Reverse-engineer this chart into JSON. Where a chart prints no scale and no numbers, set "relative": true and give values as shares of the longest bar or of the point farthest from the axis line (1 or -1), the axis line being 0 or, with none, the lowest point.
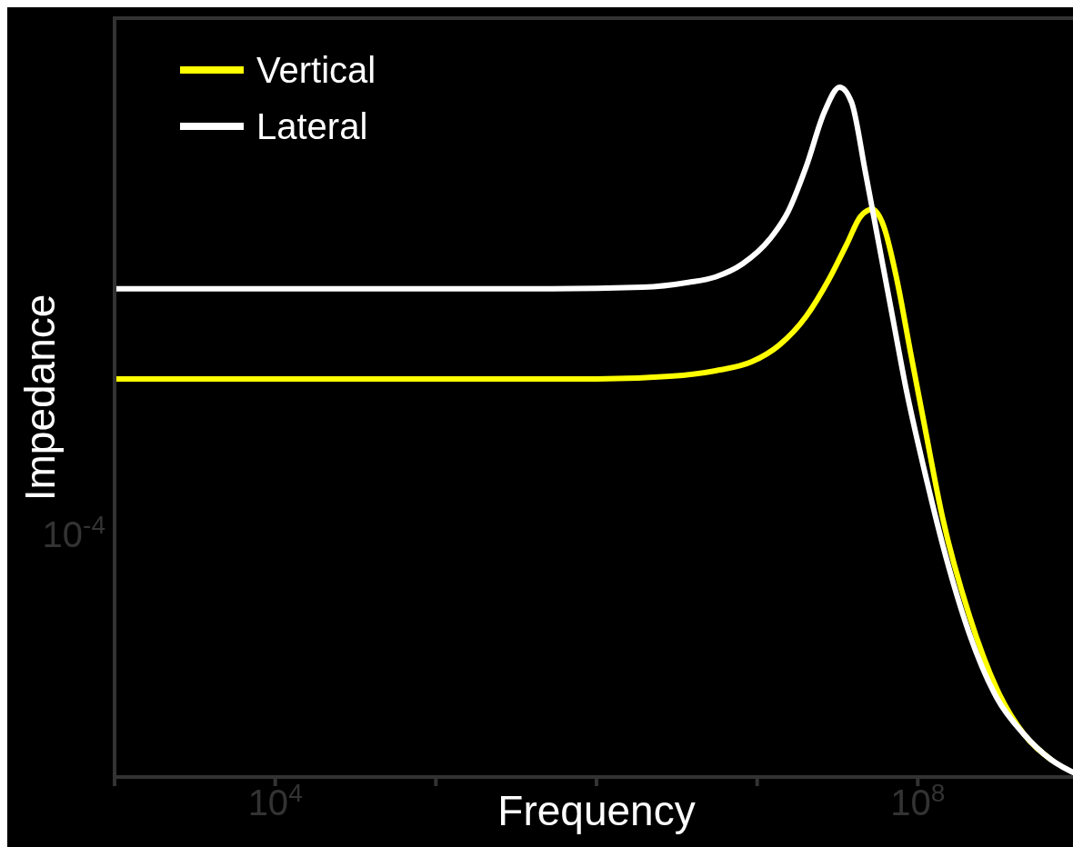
{
  "chart_data": {
    "type": "line",
    "relative": true,
    "xlabel": "Frequency",
    "ylabel": "Impedance",
    "annotations": [
      "10$^{-4}$"
    ],
    "log": "x",
    "xlim": [
      1000,
      1000000000
    ],
    "xticks": [
      {
        "value": 1000,
        "label": null
      },
      {
        "value": 10000,
        "label": "10$^{4}$"
      },
      {
        "value": 100000,
        "label": null
      },
      {
        "value": 1000000,
        "label": null
      },
      {
        "value": 10000000,
        "label": null
      },
      {
        "value": 100000000,
        "label": "10$^{8}$"
      },
      {
        "value": 1000000000,
        "label": null
      }
    ],
    "legend": "top left",
    "marker": "none",
    "line_style": "solid",
    "series": [
      {
        "name": "Vertical",
        "color": "#ffff00",
        "x": [
          1000,
          1000000,
          2870000,
          5500000,
          9250000,
          13700000,
          20200000,
          27900000,
          36200000,
          44100000,
          52200000,
          61000000,
          74100000,
          90200000,
          110000000,
          142000000,
          210000000,
          310000000,
          458000000,
          677000000
        ],
        "values": [
          0.577,
          0.577,
          0.581,
          0.589,
          0.602,
          0.626,
          0.668,
          0.721,
          0.773,
          0.813,
          0.823,
          0.8,
          0.721,
          0.615,
          0.51,
          0.378,
          0.233,
          0.128,
          0.062,
          0.025
        ]
      },
      {
        "name": "Lateral",
        "color": "#ffffff",
        "x": [
          1000,
          528000,
          1940000,
          3720000,
          5500000,
          8120000,
          12000000,
          15600000,
          20200000,
          26200000,
          32600000,
          38700000,
          47000000,
          57200000,
          69500000,
          84500000,
          110000000,
          142000000,
          210000000,
          310000000,
          458000000,
          677000000,
          1000000000
        ],
        "values": [
          0.708,
          0.708,
          0.71,
          0.717,
          0.725,
          0.744,
          0.78,
          0.82,
          0.885,
          0.964,
          1,
          0.978,
          0.879,
          0.773,
          0.668,
          0.563,
          0.444,
          0.339,
          0.207,
          0.115,
          0.062,
          0.025,
          0.003
        ]
      }
    ]
  }
}
